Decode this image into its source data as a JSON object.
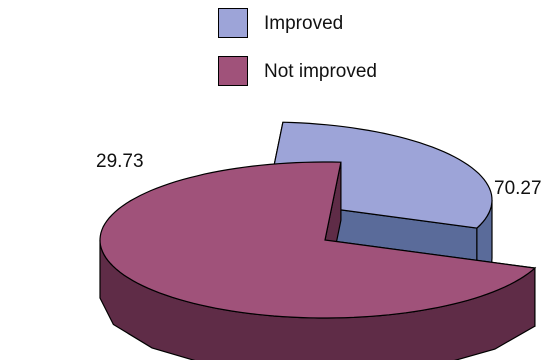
{
  "chart_data": {
    "type": "pie",
    "categories": [
      "Improved",
      "Not improved"
    ],
    "values": [
      29.73,
      70.27
    ],
    "data_labels": [
      "29.73",
      "70.27"
    ],
    "colors": {
      "Improved": {
        "top": "#9da4d8",
        "side": "#5a6b9a"
      },
      "Not improved": {
        "top": "#a0527a",
        "side": "#5f2c47"
      }
    },
    "legend_position": "top-center",
    "style": "3d-exploded"
  },
  "legend": {
    "items": [
      {
        "label": "Improved",
        "color": "#9da4d8"
      },
      {
        "label": "Not improved",
        "color": "#a0527a"
      }
    ]
  }
}
